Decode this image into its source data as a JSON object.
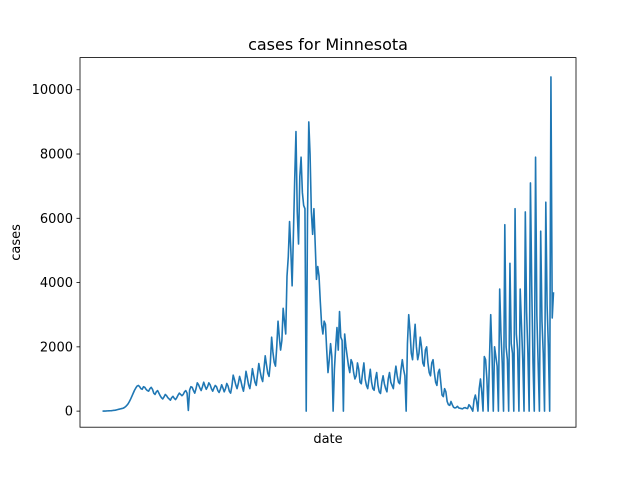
{
  "chart_data": {
    "type": "line",
    "title": "cases for Minnesota",
    "xlabel": "date",
    "ylabel": "cases",
    "ylim": [
      -500,
      11000
    ],
    "yticks": [
      0,
      2000,
      4000,
      6000,
      8000,
      10000
    ],
    "grid": false,
    "series_color": "#1f77b4",
    "series": [
      {
        "values": [
          0,
          2,
          3,
          5,
          8,
          10,
          12,
          15,
          20,
          25,
          30,
          40,
          50,
          60,
          70,
          80,
          90,
          110,
          140,
          180,
          230,
          300,
          380,
          470,
          560,
          650,
          720,
          780,
          800,
          760,
          700,
          680,
          760,
          740,
          680,
          640,
          620,
          700,
          740,
          680,
          560,
          520,
          600,
          640,
          560,
          480,
          420,
          380,
          440,
          520,
          480,
          420,
          380,
          340,
          420,
          460,
          400,
          360,
          420,
          500,
          560,
          520,
          480,
          520,
          600,
          640,
          560,
          20,
          660,
          760,
          740,
          640,
          560,
          700,
          880,
          820,
          720,
          640,
          760,
          900,
          780,
          680,
          760,
          880,
          820,
          700,
          620,
          720,
          800,
          760,
          640,
          580,
          680,
          820,
          720,
          600,
          700,
          860,
          780,
          620,
          560,
          780,
          1120,
          980,
          820,
          700,
          860,
          1080,
          940,
          760,
          620,
          880,
          1240,
          1040,
          820,
          700,
          960,
          1320,
          1100,
          900,
          800,
          1140,
          1480,
          1240,
          1040,
          920,
          1300,
          1720,
          1440,
          1180,
          1080,
          1500,
          2300,
          1840,
          1520,
          1400,
          2000,
          2800,
          2300,
          1900,
          2200,
          3200,
          2800,
          2400,
          4200,
          4800,
          5900,
          5000,
          3900,
          5500,
          7200,
          8700,
          6200,
          5200,
          7300,
          7900,
          6800,
          6400,
          6300,
          0,
          6000,
          9000,
          8000,
          6200,
          5500,
          6300,
          5200,
          4100,
          4500,
          4200,
          3400,
          2700,
          2400,
          2800,
          2700,
          1900,
          1200,
          1600,
          2100,
          1700,
          0,
          1300,
          2000,
          2600,
          1900,
          3100,
          2300,
          2200,
          0,
          2400,
          2000,
          1700,
          1400,
          1200,
          1600,
          1500,
          1200,
          1000,
          1100,
          1500,
          1300,
          900,
          850,
          1200,
          1500,
          1000,
          800,
          700,
          1000,
          1300,
          900,
          700,
          650,
          1000,
          1200,
          800,
          600,
          550,
          900,
          1100,
          850,
          700,
          600,
          1000,
          1200,
          900,
          800,
          700,
          1100,
          1400,
          1100,
          900,
          850,
          1300,
          1600,
          1300,
          1100,
          0,
          2100,
          3000,
          2500,
          1800,
          1600,
          2200,
          2700,
          2000,
          1600,
          1800,
          2300,
          2000,
          1500,
          1400,
          1900,
          2000,
          1500,
          1200,
          1100,
          1500,
          1600,
          1200,
          900,
          800,
          1200,
          1300,
          900,
          500,
          450,
          700,
          600,
          300,
          200,
          180,
          300,
          200,
          120,
          100,
          110,
          150,
          100,
          90,
          80,
          70,
          100,
          110,
          90,
          80,
          200,
          150,
          80,
          0,
          350,
          500,
          300,
          0,
          700,
          1000,
          600,
          0,
          1700,
          1600,
          1000,
          0,
          1600,
          3000,
          1800,
          0,
          2000,
          1700,
          1400,
          0,
          3800,
          2400,
          1500,
          0,
          5800,
          2000,
          1600,
          0,
          4600,
          2100,
          1800,
          0,
          6300,
          2400,
          1900,
          0,
          3800,
          2700,
          1600,
          0,
          6200,
          3100,
          1800,
          0,
          7100,
          3900,
          1500,
          0,
          7900,
          3000,
          1500,
          0,
          5600,
          2800,
          1800,
          0,
          6500,
          3300,
          2000,
          0,
          10400,
          2900,
          3700
        ]
      }
    ]
  }
}
